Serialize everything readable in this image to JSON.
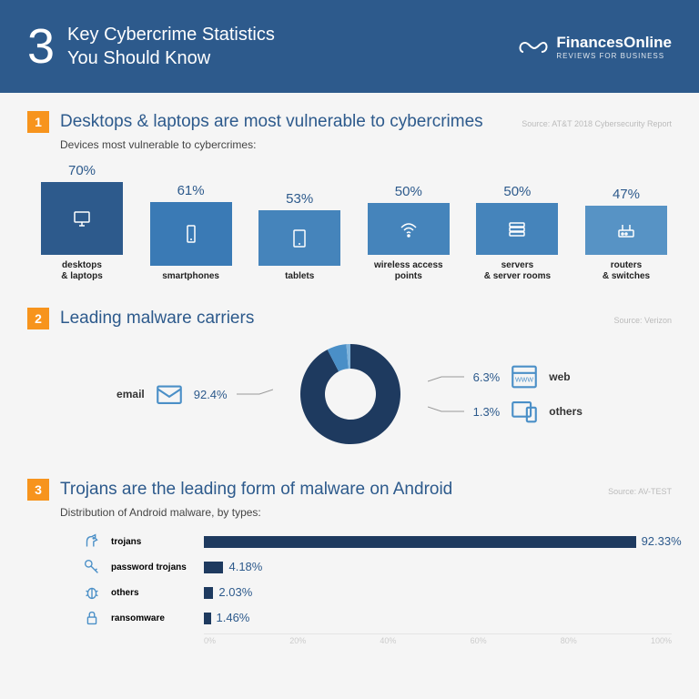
{
  "header": {
    "number": "3",
    "title_line1": "Key Cybercrime Statistics",
    "title_line2": "You Should Know",
    "brand": "FinancesOnline",
    "tagline": "REVIEWS FOR BUSINESS"
  },
  "section1": {
    "badge": "1",
    "title": "Desktops & laptops are most vulnerable to cybercrimes",
    "source": "Source: AT&T 2018 Cybersecurity Report",
    "subtitle": "Devices most vulnerable to cybercrimes:",
    "chart": {
      "type": "bar",
      "max": 70,
      "bar_max_height": 80,
      "colors": [
        "#2d5a8c",
        "#3a7ab5",
        "#4584bb",
        "#4584bb",
        "#4584bb",
        "#5793c5"
      ],
      "items": [
        {
          "pct": "70%",
          "v": 70,
          "label": "desktops\n& laptops",
          "icon": "monitor"
        },
        {
          "pct": "61%",
          "v": 61,
          "label": "smartphones",
          "icon": "phone"
        },
        {
          "pct": "53%",
          "v": 53,
          "label": "tablets",
          "icon": "tablet"
        },
        {
          "pct": "50%",
          "v": 50,
          "label": "wireless access\npoints",
          "icon": "wifi"
        },
        {
          "pct": "50%",
          "v": 50,
          "label": "servers\n& server rooms",
          "icon": "server"
        },
        {
          "pct": "47%",
          "v": 47,
          "label": "routers\n& switches",
          "icon": "router"
        }
      ]
    }
  },
  "section2": {
    "badge": "2",
    "title": "Leading malware carriers",
    "source": "Source: Verizon",
    "chart": {
      "type": "donut",
      "slices": [
        {
          "label": "email",
          "pct": "92.4%",
          "v": 92.4,
          "color": "#1e3a5f",
          "icon": "mail"
        },
        {
          "label": "web",
          "pct": "6.3%",
          "v": 6.3,
          "color": "#4a8fc7",
          "icon": "browser"
        },
        {
          "label": "others",
          "pct": "1.3%",
          "v": 1.3,
          "color": "#7fb3db",
          "icon": "devices"
        }
      ],
      "ring_color": "#1e3a5f",
      "inner": "#ffffff"
    }
  },
  "section3": {
    "badge": "3",
    "title": "Trojans are the leading form of malware on Android",
    "source": "Source: AV-TEST",
    "subtitle": "Distribution of Android malware, by types:",
    "chart": {
      "type": "hbar",
      "max": 100,
      "bar_color": "#1e3a5f",
      "axis": [
        "0%",
        "20%",
        "40%",
        "60%",
        "80%",
        "100%"
      ],
      "items": [
        {
          "label": "trojans",
          "pct": "92.33%",
          "v": 92.33,
          "icon": "horse"
        },
        {
          "label": "password trojans",
          "pct": "4.18%",
          "v": 4.18,
          "icon": "key"
        },
        {
          "label": "others",
          "pct": "2.03%",
          "v": 2.03,
          "icon": "bug"
        },
        {
          "label": "ransomware",
          "pct": "1.46%",
          "v": 1.46,
          "icon": "lock"
        }
      ]
    }
  }
}
